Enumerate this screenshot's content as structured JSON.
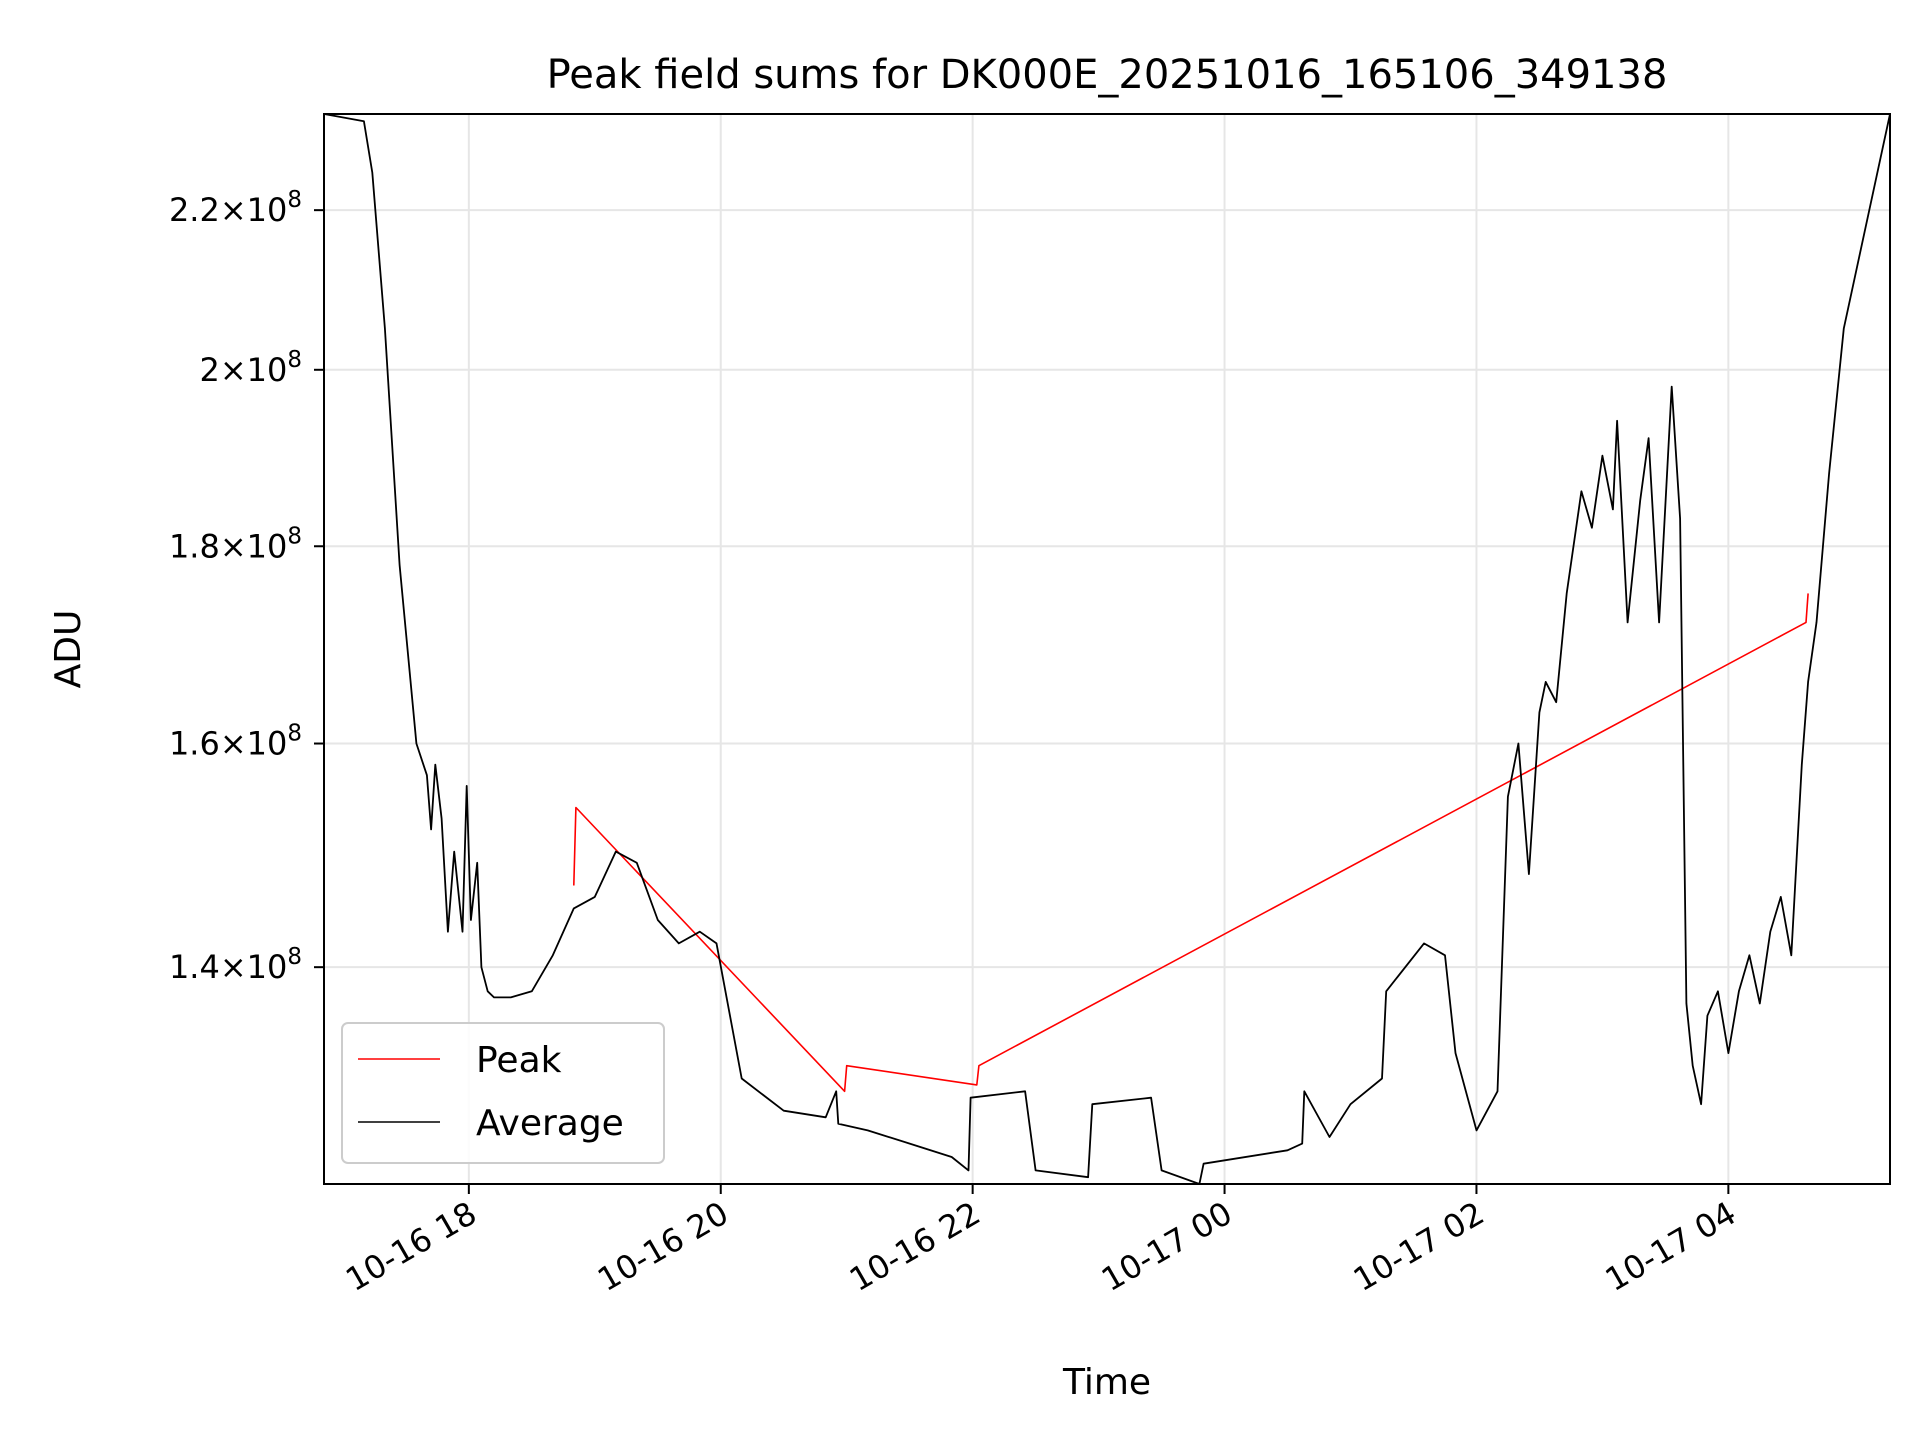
{
  "chart_data": {
    "type": "line",
    "title": "Peak field sums for DK000E_20251016_165106_349138",
    "xlabel": "Time",
    "ylabel": "ADU",
    "y_scale": "log",
    "xlim": [
      "2025-10-16 16:51",
      "2025-10-17 05:17"
    ],
    "ylim": [
      123000000.0,
      233000000.0
    ],
    "grid": true,
    "legend_position": "lower-left",
    "x_ticks": [
      {
        "value": "2025-10-16 18:00",
        "label": "10-16 18"
      },
      {
        "value": "2025-10-16 20:00",
        "label": "10-16 20"
      },
      {
        "value": "2025-10-16 22:00",
        "label": "10-16 22"
      },
      {
        "value": "2025-10-17 00:00",
        "label": "10-17 00"
      },
      {
        "value": "2025-10-17 02:00",
        "label": "10-17 02"
      },
      {
        "value": "2025-10-17 04:00",
        "label": "10-17 04"
      }
    ],
    "y_ticks": [
      {
        "value": 140000000.0,
        "mantissa": "1.4",
        "base": "10",
        "exp": "8"
      },
      {
        "value": 160000000.0,
        "mantissa": "1.6",
        "base": "10",
        "exp": "8"
      },
      {
        "value": 180000000.0,
        "mantissa": "1.8",
        "base": "10",
        "exp": "8"
      },
      {
        "value": 200000000.0,
        "mantissa": "2",
        "base": "10",
        "exp": "8"
      },
      {
        "value": 220000000.0,
        "mantissa": "2.2",
        "base": "10",
        "exp": "8"
      }
    ],
    "series": [
      {
        "name": "Peak",
        "color": "#ff0000",
        "x": [
          "2025-10-16 18:50",
          "2025-10-16 18:51",
          "2025-10-16 20:59",
          "2025-10-16 21:00",
          "2025-10-16 22:02",
          "2025-10-16 22:03",
          "2025-10-17 04:37",
          "2025-10-17 04:38"
        ],
        "y": [
          147000000.0,
          154000000.0,
          130000000.0,
          132000000.0,
          130500000.0,
          132000000.0,
          172000000.0,
          175000000.0
        ]
      },
      {
        "name": "Average",
        "color": "#000000",
        "x": [
          "2025-10-16 16:51",
          "2025-10-16 17:10",
          "2025-10-16 17:14",
          "2025-10-16 17:20",
          "2025-10-16 17:27",
          "2025-10-16 17:35",
          "2025-10-16 17:40",
          "2025-10-16 17:42",
          "2025-10-16 17:44",
          "2025-10-16 17:47",
          "2025-10-16 17:50",
          "2025-10-16 17:53",
          "2025-10-16 17:57",
          "2025-10-16 17:59",
          "2025-10-16 18:01",
          "2025-10-16 18:04",
          "2025-10-16 18:06",
          "2025-10-16 18:09",
          "2025-10-16 18:12",
          "2025-10-16 18:20",
          "2025-10-16 18:30",
          "2025-10-16 18:40",
          "2025-10-16 18:50",
          "2025-10-16 19:00",
          "2025-10-16 19:10",
          "2025-10-16 19:20",
          "2025-10-16 19:30",
          "2025-10-16 19:40",
          "2025-10-16 19:50",
          "2025-10-16 19:58",
          "2025-10-16 20:10",
          "2025-10-16 20:30",
          "2025-10-16 20:50",
          "2025-10-16 20:55",
          "2025-10-16 20:56",
          "2025-10-16 21:10",
          "2025-10-16 21:30",
          "2025-10-16 21:50",
          "2025-10-16 21:58",
          "2025-10-16 21:59",
          "2025-10-16 22:25",
          "2025-10-16 22:30",
          "2025-10-16 22:55",
          "2025-10-16 22:57",
          "2025-10-16 23:25",
          "2025-10-16 23:30",
          "2025-10-16 23:48",
          "2025-10-16 23:50",
          "2025-10-17 00:30",
          "2025-10-17 00:37",
          "2025-10-17 00:38",
          "2025-10-17 00:50",
          "2025-10-17 01:00",
          "2025-10-17 01:15",
          "2025-10-17 01:17",
          "2025-10-17 01:35",
          "2025-10-17 01:45",
          "2025-10-17 01:50",
          "2025-10-17 02:00",
          "2025-10-17 02:10",
          "2025-10-17 02:15",
          "2025-10-17 02:20",
          "2025-10-17 02:25",
          "2025-10-17 02:30",
          "2025-10-17 02:33",
          "2025-10-17 02:38",
          "2025-10-17 02:43",
          "2025-10-17 02:50",
          "2025-10-17 02:55",
          "2025-10-17 03:00",
          "2025-10-17 03:05",
          "2025-10-17 03:07",
          "2025-10-17 03:12",
          "2025-10-17 03:18",
          "2025-10-17 03:22",
          "2025-10-17 03:27",
          "2025-10-17 03:33",
          "2025-10-17 03:37",
          "2025-10-17 03:40",
          "2025-10-17 03:43",
          "2025-10-17 03:47",
          "2025-10-17 03:50",
          "2025-10-17 03:55",
          "2025-10-17 04:00",
          "2025-10-17 04:05",
          "2025-10-17 04:10",
          "2025-10-17 04:15",
          "2025-10-17 04:20",
          "2025-10-17 04:25",
          "2025-10-17 04:30",
          "2025-10-17 04:35",
          "2025-10-17 04:38",
          "2025-10-17 04:42",
          "2025-10-17 04:48",
          "2025-10-17 04:55",
          "2025-10-17 05:17"
        ],
        "y": [
          233000000.0,
          232000000.0,
          225000000.0,
          205000000.0,
          178000000.0,
          160000000.0,
          157000000.0,
          152000000.0,
          158000000.0,
          153000000.0,
          143000000.0,
          150000000.0,
          143000000.0,
          156000000.0,
          144000000.0,
          149000000.0,
          140000000.0,
          138000000.0,
          137500000.0,
          137500000.0,
          138000000.0,
          141000000.0,
          145000000.0,
          146000000.0,
          150000000.0,
          149000000.0,
          144000000.0,
          142000000.0,
          143000000.0,
          142000000.0,
          131000000.0,
          128500000.0,
          128000000.0,
          130000000.0,
          127500000.0,
          127000000.0,
          126000000.0,
          125000000.0,
          124000000.0,
          129500000.0,
          130000000.0,
          124000000.0,
          123500000.0,
          129000000.0,
          129500000.0,
          124000000.0,
          123000000.0,
          124500000.0,
          125500000.0,
          126000000.0,
          130000000.0,
          126500000.0,
          129000000.0,
          131000000.0,
          138000000.0,
          142000000.0,
          141000000.0,
          133000000.0,
          127000000.0,
          130000000.0,
          155000000.0,
          160000000.0,
          148000000.0,
          163000000.0,
          166000000.0,
          164000000.0,
          175000000.0,
          186000000.0,
          182000000.0,
          190000000.0,
          184000000.0,
          194000000.0,
          172000000.0,
          185000000.0,
          192000000.0,
          172000000.0,
          198000000.0,
          183000000.0,
          137000000.0,
          132000000.0,
          129000000.0,
          136000000.0,
          138000000.0,
          133000000.0,
          138000000.0,
          141000000.0,
          137000000.0,
          143000000.0,
          146000000.0,
          141000000.0,
          158000000.0,
          166000000.0,
          172000000.0,
          188000000.0,
          205000000.0,
          233000000.0
        ]
      }
    ]
  }
}
